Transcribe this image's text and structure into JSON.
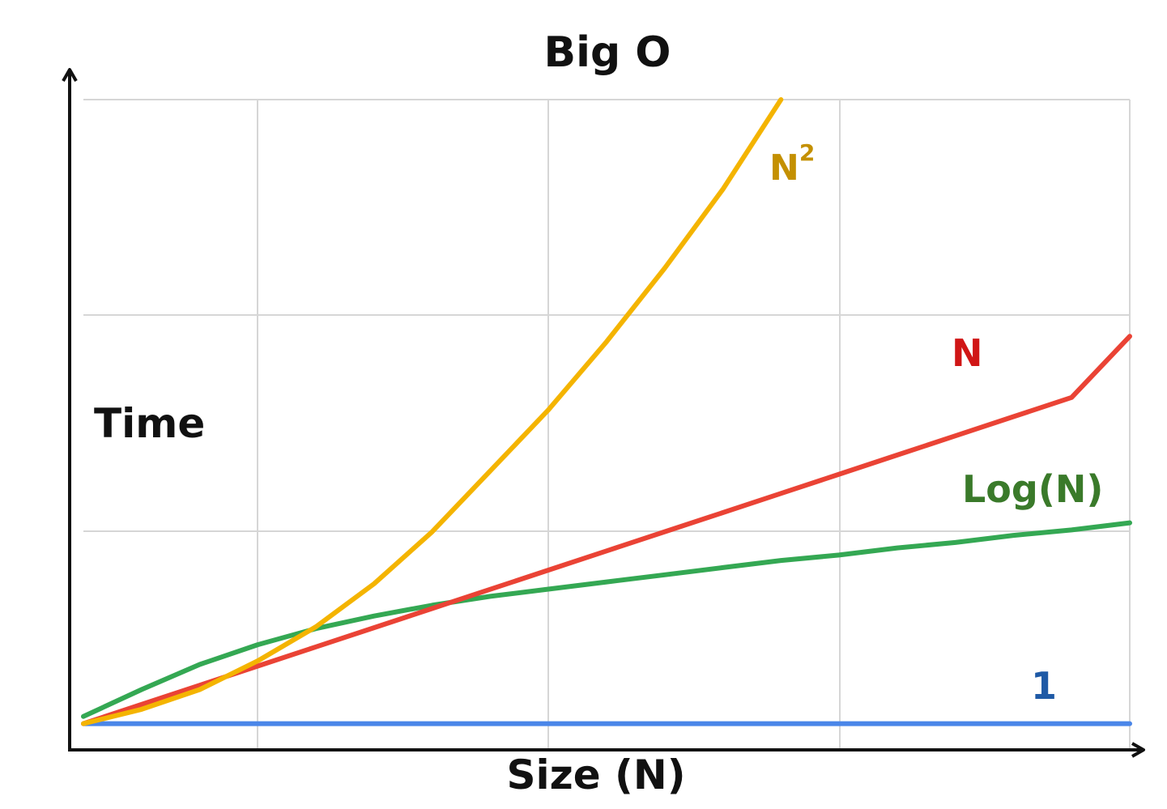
{
  "chart_data": {
    "type": "line",
    "title": "Big O",
    "xlabel": "Size (N)",
    "ylabel": "Time",
    "xlim": [
      0,
      36
    ],
    "ylim": [
      0,
      35
    ],
    "grid": true,
    "x": [
      0,
      2,
      4,
      6,
      8,
      10,
      12,
      14,
      16,
      18,
      20,
      22,
      24,
      26,
      28,
      30,
      32,
      34,
      36
    ],
    "series": [
      {
        "name": "N²",
        "label_base": "N",
        "label_sup": "2",
        "color": "#f4b400",
        "label_color": "#c49000",
        "x": [
          0,
          2,
          4,
          6,
          8,
          10,
          12,
          14,
          16,
          18,
          20,
          22,
          24
        ],
        "values": [
          0.2,
          1.0,
          2.1,
          3.7,
          5.6,
          8.0,
          10.9,
          14.3,
          17.7,
          21.5,
          25.6,
          30.0,
          35.0
        ]
      },
      {
        "name": "N",
        "color": "#ea4335",
        "label_color": "#d01616",
        "values": [
          0.2,
          1.27,
          2.34,
          3.41,
          4.48,
          5.55,
          6.62,
          7.69,
          8.76,
          9.83,
          10.9,
          11.97,
          13.04,
          14.11,
          15.18,
          16.25,
          17.32,
          18.39,
          21.8
        ]
      },
      {
        "name": "Log(N)",
        "color": "#34a853",
        "label_color": "#3a7a2a",
        "values": [
          0.6,
          2.1,
          3.5,
          4.6,
          5.5,
          6.2,
          6.8,
          7.3,
          7.7,
          8.1,
          8.5,
          8.9,
          9.3,
          9.6,
          10.0,
          10.3,
          10.7,
          11.0,
          11.4
        ]
      },
      {
        "name": "1",
        "color": "#4a86e8",
        "label_color": "#1f5aa6",
        "values": [
          0.2,
          0.2,
          0.2,
          0.2,
          0.2,
          0.2,
          0.2,
          0.2,
          0.2,
          0.2,
          0.2,
          0.2,
          0.2,
          0.2,
          0.2,
          0.2,
          0.2,
          0.2,
          0.2
        ]
      }
    ]
  }
}
